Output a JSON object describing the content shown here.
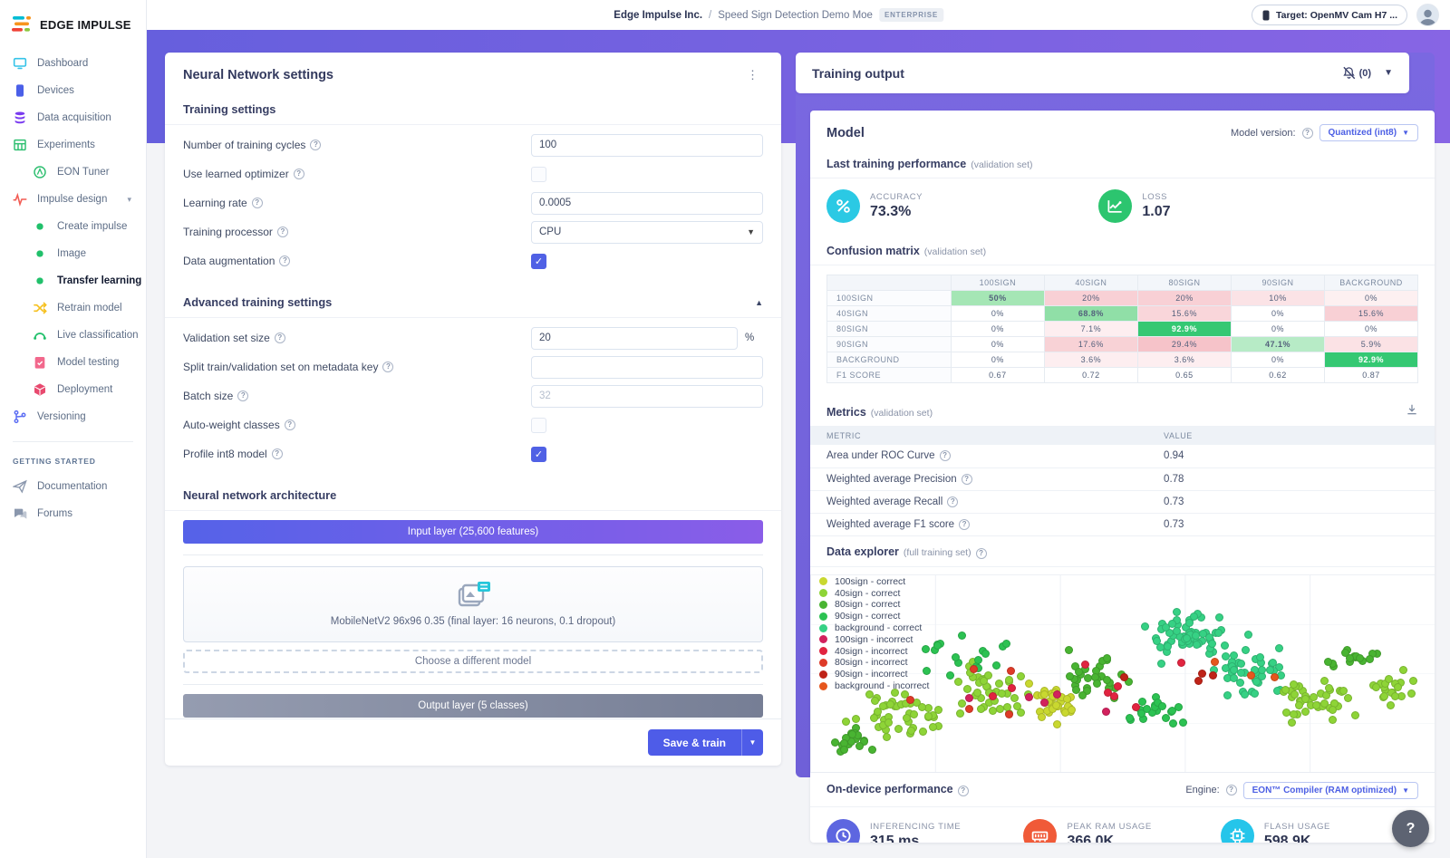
{
  "colors": {
    "accent": "#4e5ce8",
    "band_from": "#665fdd",
    "band_to": "#8765e4",
    "accuracy_icon_bg": "#2bc9e4",
    "loss_icon_bg": "#2cc56f",
    "checkbox_checked": "#5061e5"
  },
  "topbar": {
    "breadcrumb_org": "Edge Impulse Inc.",
    "breadcrumb_sep": "/",
    "breadcrumb_project": "Speed Sign Detection Demo Moe",
    "badge": "ENTERPRISE",
    "target_button": "Target: OpenMV Cam H7 ..."
  },
  "sidebar": {
    "brand": "EDGE IMPULSE",
    "items": [
      {
        "label": "Dashboard",
        "icon": "dashboard-icon",
        "color": "#35c3e8"
      },
      {
        "label": "Devices",
        "icon": "devices-icon",
        "color": "#4a5fe8"
      },
      {
        "label": "Data acquisition",
        "icon": "data-acquisition-icon",
        "color": "#7a3bf0"
      },
      {
        "label": "Experiments",
        "icon": "experiments-icon",
        "color": "#2fbf71"
      },
      {
        "label": "EON Tuner",
        "icon": "eon-tuner-icon",
        "color": "#2fbf71",
        "indent": 1
      },
      {
        "label": "Impulse design",
        "icon": "impulse-design-icon",
        "color": "#f25c54",
        "caret": "▾"
      },
      {
        "label": "Create impulse",
        "icon": "dot-icon",
        "color": "#21c06b",
        "indent": 2
      },
      {
        "label": "Image",
        "icon": "dot-icon",
        "color": "#21c06b",
        "indent": 2
      },
      {
        "label": "Transfer learning",
        "icon": "dot-icon",
        "color": "#21c06b",
        "indent": 2,
        "active": true
      },
      {
        "label": "Retrain model",
        "icon": "retrain-icon",
        "color": "#f6c01e",
        "indent": 2
      },
      {
        "label": "Live classification",
        "icon": "live-classification-icon",
        "color": "#21c06b",
        "indent": 2
      },
      {
        "label": "Model testing",
        "icon": "model-testing-icon",
        "color": "#f2688c",
        "indent": 2
      },
      {
        "label": "Deployment",
        "icon": "deployment-icon",
        "color": "#e84a6f",
        "indent": 2
      },
      {
        "label": "Versioning",
        "icon": "versioning-icon",
        "color": "#5a6cf3"
      }
    ],
    "section_label": "GETTING STARTED",
    "footer_items": [
      {
        "label": "Documentation",
        "icon": "documentation-icon",
        "color": "#8a97ad"
      },
      {
        "label": "Forums",
        "icon": "forums-icon",
        "color": "#8a97ad"
      }
    ]
  },
  "nn": {
    "title": "Neural Network settings",
    "groups": [
      {
        "heading": "Training settings",
        "fields": [
          {
            "label": "Number of training cycles",
            "control": {
              "type": "input",
              "value": "100"
            }
          },
          {
            "label": "Use learned optimizer",
            "control": {
              "type": "checkbox",
              "checked": false
            }
          },
          {
            "label": "Learning rate",
            "control": {
              "type": "input",
              "value": "0.0005"
            }
          },
          {
            "label": "Training processor",
            "control": {
              "type": "select",
              "value": "CPU"
            }
          },
          {
            "label": "Data augmentation",
            "control": {
              "type": "checkbox",
              "checked": true
            }
          }
        ]
      },
      {
        "heading": "Advanced training settings",
        "collapsible": true,
        "fields": [
          {
            "label": "Validation set size",
            "control": {
              "type": "input",
              "value": "20",
              "suffix": "%"
            }
          },
          {
            "label": "Split train/validation set on metadata key",
            "control": {
              "type": "input",
              "value": ""
            }
          },
          {
            "label": "Batch size",
            "control": {
              "type": "input",
              "value": "",
              "placeholder": "32"
            }
          },
          {
            "label": "Auto-weight classes",
            "control": {
              "type": "checkbox",
              "checked": false
            }
          },
          {
            "label": "Profile int8 model",
            "control": {
              "type": "checkbox",
              "checked": true
            }
          }
        ]
      }
    ],
    "architecture": {
      "heading": "Neural network architecture",
      "input_layer": "Input layer (25,600 features)",
      "model_name": "MobileNetV2 96x96 0.35 (final layer: 16 neurons, 0.1 dropout)",
      "choose_model": "Choose a different model",
      "output_layer": "Output layer (5 classes)"
    },
    "save_button": "Save & train"
  },
  "output_panel": {
    "title": "Training output",
    "notifications": "(0)"
  },
  "model_card": {
    "title": "Model",
    "version_label": "Model version:",
    "version_value": "Quantized (int8)",
    "last_training": {
      "heading": "Last training performance",
      "subheading": "(validation set)",
      "stats": [
        {
          "label": "ACCURACY",
          "value": "73.3%",
          "icon": "percent-icon",
          "color": "#2bc9e4"
        },
        {
          "label": "LOSS",
          "value": "1.07",
          "icon": "chart-icon",
          "color": "#2cc56f"
        }
      ]
    },
    "confusion": {
      "heading": "Confusion matrix",
      "subheading": "(validation set)",
      "columns": [
        "100SIGN",
        "40SIGN",
        "80SIGN",
        "90SIGN",
        "BACKGROUND"
      ],
      "rows": [
        {
          "label": "100SIGN",
          "cells": [
            {
              "t": "50%",
              "bg": "#a5e6b5",
              "b": 1
            },
            {
              "t": "20%",
              "bg": "#f8d0d5"
            },
            {
              "t": "20%",
              "bg": "#f8d0d5"
            },
            {
              "t": "10%",
              "bg": "#fbe3e6"
            },
            {
              "t": "0%",
              "bg": "#fdf0f1"
            }
          ]
        },
        {
          "label": "40SIGN",
          "cells": [
            {
              "t": "0%"
            },
            {
              "t": "68.8%",
              "bg": "#90dfa7",
              "b": 1
            },
            {
              "t": "15.6%",
              "bg": "#f9d6da"
            },
            {
              "t": "0%"
            },
            {
              "t": "15.6%",
              "bg": "#f8d0d5"
            }
          ]
        },
        {
          "label": "80SIGN",
          "cells": [
            {
              "t": "0%"
            },
            {
              "t": "7.1%",
              "bg": "#fdeef0"
            },
            {
              "t": "92.9%",
              "bg": "#35c873",
              "fg": "#ffffff",
              "b": 1
            },
            {
              "t": "0%"
            },
            {
              "t": "0%"
            }
          ]
        },
        {
          "label": "90SIGN",
          "cells": [
            {
              "t": "0%"
            },
            {
              "t": "17.6%",
              "bg": "#f8d2d6"
            },
            {
              "t": "29.4%",
              "bg": "#f6c3c9"
            },
            {
              "t": "47.1%",
              "bg": "#b7ebc6",
              "b": 1
            },
            {
              "t": "5.9%",
              "bg": "#fbe2e5"
            }
          ]
        },
        {
          "label": "BACKGROUND",
          "cells": [
            {
              "t": "0%"
            },
            {
              "t": "3.6%",
              "bg": "#fdeef0"
            },
            {
              "t": "3.6%",
              "bg": "#fdeef0"
            },
            {
              "t": "0%"
            },
            {
              "t": "92.9%",
              "bg": "#35c873",
              "fg": "#ffffff",
              "b": 1
            }
          ]
        },
        {
          "label": "F1 SCORE",
          "cells": [
            {
              "t": "0.67"
            },
            {
              "t": "0.72"
            },
            {
              "t": "0.65"
            },
            {
              "t": "0.62"
            },
            {
              "t": "0.87"
            }
          ]
        }
      ]
    },
    "metrics": {
      "heading": "Metrics",
      "subheading": "(validation set)",
      "columns": [
        "METRIC",
        "VALUE"
      ],
      "rows": [
        {
          "label": "Area under ROC Curve",
          "value": "0.94"
        },
        {
          "label": "Weighted average Precision",
          "value": "0.78"
        },
        {
          "label": "Weighted average Recall",
          "value": "0.73"
        },
        {
          "label": "Weighted average F1 score",
          "value": "0.73"
        }
      ]
    },
    "explorer": {
      "heading": "Data explorer",
      "subheading": "(full training set)"
    },
    "on_device": {
      "heading": "On-device performance",
      "engine_label": "Engine:",
      "engine_value": "EON™ Compiler (RAM optimized)",
      "stats": [
        {
          "label": "INFERENCING TIME",
          "value": "315 ms.",
          "icon": "clock-icon",
          "color": "#5d66e0"
        },
        {
          "label": "PEAK RAM USAGE",
          "value": "366.0K",
          "icon": "ram-icon",
          "color": "#f05a38"
        },
        {
          "label": "FLASH USAGE",
          "value": "598.9K",
          "icon": "flash-icon",
          "color": "#25c5ea"
        }
      ]
    }
  },
  "chart_data": {
    "type": "scatter",
    "title": "Data explorer (full training set)",
    "grid": true,
    "axes_labeled": false,
    "legend_position": "top-left",
    "legend": [
      {
        "label": "100sign - correct",
        "color": "#c9d830"
      },
      {
        "label": "40sign - correct",
        "color": "#8ed437"
      },
      {
        "label": "80sign - correct",
        "color": "#49b432"
      },
      {
        "label": "90sign - correct",
        "color": "#2cc252"
      },
      {
        "label": "background - correct",
        "color": "#36d184"
      },
      {
        "label": "100sign - incorrect",
        "color": "#d2215d"
      },
      {
        "label": "40sign - incorrect",
        "color": "#e12440"
      },
      {
        "label": "80sign - incorrect",
        "color": "#de3b28"
      },
      {
        "label": "90sign - incorrect",
        "color": "#bf2318"
      },
      {
        "label": "background - incorrect",
        "color": "#e6561d"
      }
    ],
    "seed": 7,
    "clusters": [
      {
        "class": "40sign - correct",
        "cx": 0.13,
        "cy": 0.68,
        "rx": 0.1,
        "ry": 0.16,
        "n": 45
      },
      {
        "class": "80sign - correct",
        "cx": 0.06,
        "cy": 0.82,
        "rx": 0.05,
        "ry": 0.1,
        "n": 22
      },
      {
        "class": "40sign - correct",
        "cx": 0.28,
        "cy": 0.56,
        "rx": 0.09,
        "ry": 0.2,
        "n": 40
      },
      {
        "class": "90sign - correct",
        "cx": 0.24,
        "cy": 0.4,
        "rx": 0.09,
        "ry": 0.13,
        "n": 18
      },
      {
        "class": "100sign - correct",
        "cx": 0.38,
        "cy": 0.63,
        "rx": 0.06,
        "ry": 0.14,
        "n": 35
      },
      {
        "class": "80sign - correct",
        "cx": 0.45,
        "cy": 0.5,
        "rx": 0.08,
        "ry": 0.17,
        "n": 30
      },
      {
        "class": "background - correct",
        "cx": 0.6,
        "cy": 0.3,
        "rx": 0.1,
        "ry": 0.17,
        "n": 60
      },
      {
        "class": "background - correct",
        "cx": 0.7,
        "cy": 0.48,
        "rx": 0.09,
        "ry": 0.21,
        "n": 45
      },
      {
        "class": "90sign - correct",
        "cx": 0.55,
        "cy": 0.7,
        "rx": 0.08,
        "ry": 0.13,
        "n": 20
      },
      {
        "class": "40sign - correct",
        "cx": 0.8,
        "cy": 0.6,
        "rx": 0.09,
        "ry": 0.15,
        "n": 45
      },
      {
        "class": "40sign - correct",
        "cx": 0.93,
        "cy": 0.57,
        "rx": 0.05,
        "ry": 0.11,
        "n": 20
      },
      {
        "class": "80sign - correct",
        "cx": 0.86,
        "cy": 0.42,
        "rx": 0.07,
        "ry": 0.1,
        "n": 15
      },
      {
        "class": "40sign - incorrect",
        "cx": 0.45,
        "cy": 0.55,
        "rx": 0.25,
        "ry": 0.22,
        "n": 8
      },
      {
        "class": "100sign - incorrect",
        "cx": 0.4,
        "cy": 0.6,
        "rx": 0.2,
        "ry": 0.18,
        "n": 5
      },
      {
        "class": "80sign - incorrect",
        "cx": 0.3,
        "cy": 0.58,
        "rx": 0.22,
        "ry": 0.2,
        "n": 5
      },
      {
        "class": "90sign - incorrect",
        "cx": 0.58,
        "cy": 0.5,
        "rx": 0.28,
        "ry": 0.24,
        "n": 4
      },
      {
        "class": "background - incorrect",
        "cx": 0.68,
        "cy": 0.45,
        "rx": 0.2,
        "ry": 0.2,
        "n": 3
      }
    ]
  },
  "help_button": "?"
}
